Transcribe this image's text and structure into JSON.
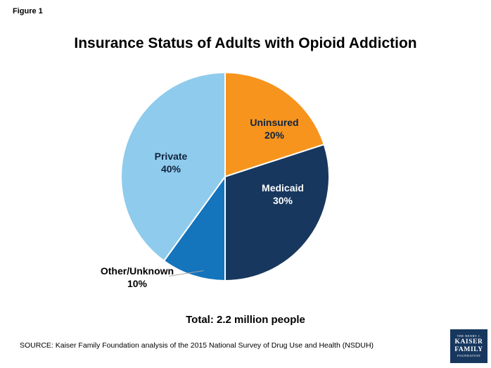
{
  "figure_label": "Figure 1",
  "title": "Insurance Status of Adults with Opioid Addiction",
  "total_label": "Total: 2.2 million people",
  "source": "SOURCE: Kaiser Family Foundation analysis of the 2015 National Survey of Drug Use and Health (NSDUH)",
  "logo": {
    "line1": "THE HENRY J.",
    "line2": "KAISER",
    "line3": "FAMILY",
    "line4": "FOUNDATION"
  },
  "chart_data": {
    "type": "pie",
    "title": "Insurance Status of Adults with Opioid Addiction",
    "start_angle_deg": 0,
    "direction": "clockwise",
    "legend": "none",
    "annotation": "Total: 2.2 million people",
    "slices": [
      {
        "label": "Uninsured",
        "value": 20,
        "percent_label": "20%",
        "color": "#f7941d"
      },
      {
        "label": "Medicaid",
        "value": 30,
        "percent_label": "30%",
        "color": "#17375e"
      },
      {
        "label": "Other/Unknown",
        "value": 10,
        "percent_label": "10%",
        "color": "#1474bc"
      },
      {
        "label": "Private",
        "value": 40,
        "percent_label": "40%",
        "color": "#8fcbec"
      }
    ]
  }
}
